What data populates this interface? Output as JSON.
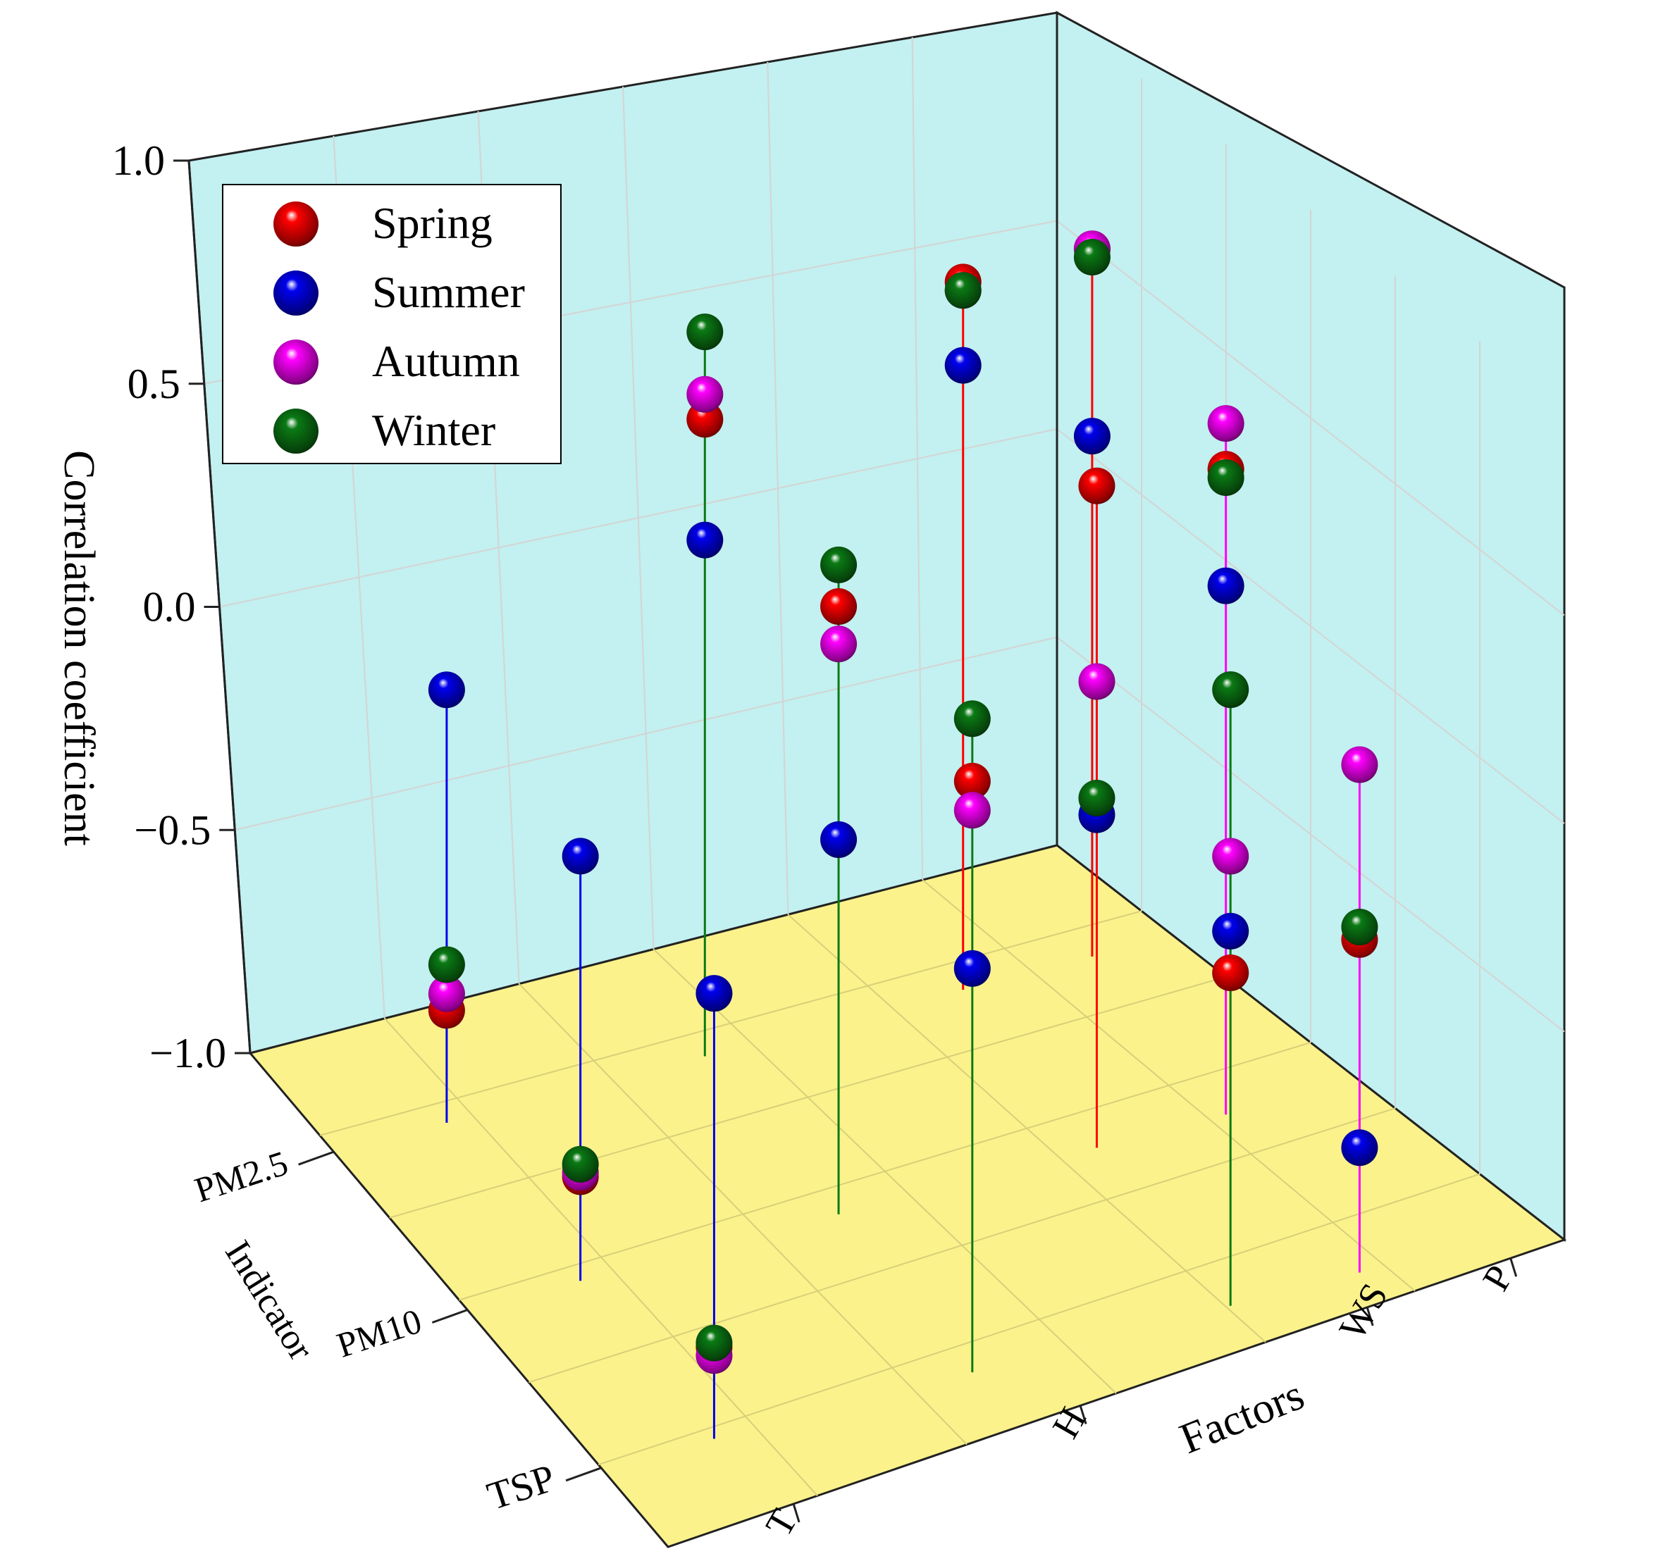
{
  "chart_data": {
    "type": "3d-scatter",
    "ylabel": "Correlation coefficient",
    "xlabel": "Factors",
    "zlabel": "Indicator",
    "ylim": [
      -1.0,
      1.0
    ],
    "yticks": [
      {
        "value": 1.0,
        "label": "1.0"
      },
      {
        "value": 0.5,
        "label": "0.5"
      },
      {
        "value": 0.0,
        "label": "0.0"
      },
      {
        "value": -0.5,
        "label": "−0.5"
      },
      {
        "value": -1.0,
        "label": "−1.0"
      }
    ],
    "factors": [
      "T",
      "H",
      "WS",
      "P"
    ],
    "indicators": [
      "TSP",
      "PM10",
      "PM2.5"
    ],
    "legend_position": "top-left",
    "series": [
      {
        "name": "Spring",
        "color": "#ff0000",
        "points": [
          {
            "factor": "T",
            "indicator": "TSP",
            "value": -0.78
          },
          {
            "factor": "T",
            "indicator": "PM10",
            "value": -0.75
          },
          {
            "factor": "T",
            "indicator": "PM2.5",
            "value": -0.73
          },
          {
            "factor": "H",
            "indicator": "TSP",
            "value": 0.42
          },
          {
            "factor": "H",
            "indicator": "PM10",
            "value": 0.46
          },
          {
            "factor": "H",
            "indicator": "PM2.5",
            "value": 0.53
          },
          {
            "factor": "WS",
            "indicator": "TSP",
            "value": -0.2
          },
          {
            "factor": "WS",
            "indicator": "PM10",
            "value": 0.59
          },
          {
            "factor": "WS",
            "indicator": "PM2.5",
            "value": 0.7
          },
          {
            "factor": "P",
            "indicator": "TSP",
            "value": -0.2
          },
          {
            "factor": "P",
            "indicator": "PM10",
            "value": 0.55
          },
          {
            "factor": "P",
            "indicator": "PM2.5",
            "value": 0.7
          }
        ]
      },
      {
        "name": "Summer",
        "color": "#0000ee",
        "points": [
          {
            "factor": "T",
            "indicator": "TSP",
            "value": 0.07
          },
          {
            "factor": "T",
            "indicator": "PM10",
            "value": 0.02
          },
          {
            "factor": "T",
            "indicator": "PM2.5",
            "value": 0.04
          },
          {
            "factor": "H",
            "indicator": "TSP",
            "value": -0.03
          },
          {
            "factor": "H",
            "indicator": "PM10",
            "value": -0.1
          },
          {
            "factor": "H",
            "indicator": "PM2.5",
            "value": 0.24
          },
          {
            "factor": "WS",
            "indicator": "TSP",
            "value": -0.1
          },
          {
            "factor": "WS",
            "indicator": "PM10",
            "value": -0.2
          },
          {
            "factor": "WS",
            "indicator": "PM2.5",
            "value": 0.5
          },
          {
            "factor": "P",
            "indicator": "TSP",
            "value": -0.7
          },
          {
            "factor": "P",
            "indicator": "PM10",
            "value": 0.27
          },
          {
            "factor": "P",
            "indicator": "PM2.5",
            "value": 0.25
          }
        ]
      },
      {
        "name": "Autumn",
        "color": "#ff00ff",
        "points": [
          {
            "factor": "T",
            "indicator": "TSP",
            "value": -0.8
          },
          {
            "factor": "T",
            "indicator": "PM10",
            "value": -0.74
          },
          {
            "factor": "T",
            "indicator": "PM2.5",
            "value": -0.69
          },
          {
            "factor": "H",
            "indicator": "TSP",
            "value": 0.35
          },
          {
            "factor": "H",
            "indicator": "PM10",
            "value": 0.37
          },
          {
            "factor": "H",
            "indicator": "PM2.5",
            "value": 0.59
          },
          {
            "factor": "WS",
            "indicator": "TSP",
            "value": 0.08
          },
          {
            "factor": "WS",
            "indicator": "PM10",
            "value": 0.12
          },
          {
            "factor": "WS",
            "indicator": "PM2.5",
            "value": 0.68
          },
          {
            "factor": "P",
            "indicator": "TSP",
            "value": 0.22
          },
          {
            "factor": "P",
            "indicator": "PM10",
            "value": 0.66
          },
          {
            "factor": "P",
            "indicator": "PM2.5",
            "value": 0.7
          }
        ]
      },
      {
        "name": "Winter",
        "color": "#0a7a14",
        "points": [
          {
            "factor": "T",
            "indicator": "TSP",
            "value": -0.77
          },
          {
            "factor": "T",
            "indicator": "PM10",
            "value": -0.72
          },
          {
            "factor": "T",
            "indicator": "PM2.5",
            "value": -0.62
          },
          {
            "factor": "H",
            "indicator": "TSP",
            "value": 0.57
          },
          {
            "factor": "H",
            "indicator": "PM10",
            "value": 0.56
          },
          {
            "factor": "H",
            "indicator": "PM2.5",
            "value": 0.74
          },
          {
            "factor": "WS",
            "indicator": "TSP",
            "value": 0.48
          },
          {
            "factor": "WS",
            "indicator": "PM10",
            "value": -0.16
          },
          {
            "factor": "WS",
            "indicator": "PM2.5",
            "value": 0.68
          },
          {
            "factor": "P",
            "indicator": "TSP",
            "value": -0.17
          },
          {
            "factor": "P",
            "indicator": "PM10",
            "value": 0.53
          },
          {
            "factor": "P",
            "indicator": "PM2.5",
            "value": 0.68
          }
        ]
      }
    ]
  },
  "colors": {
    "walls": "#c3f0f0",
    "floor": "#fbf28c"
  }
}
